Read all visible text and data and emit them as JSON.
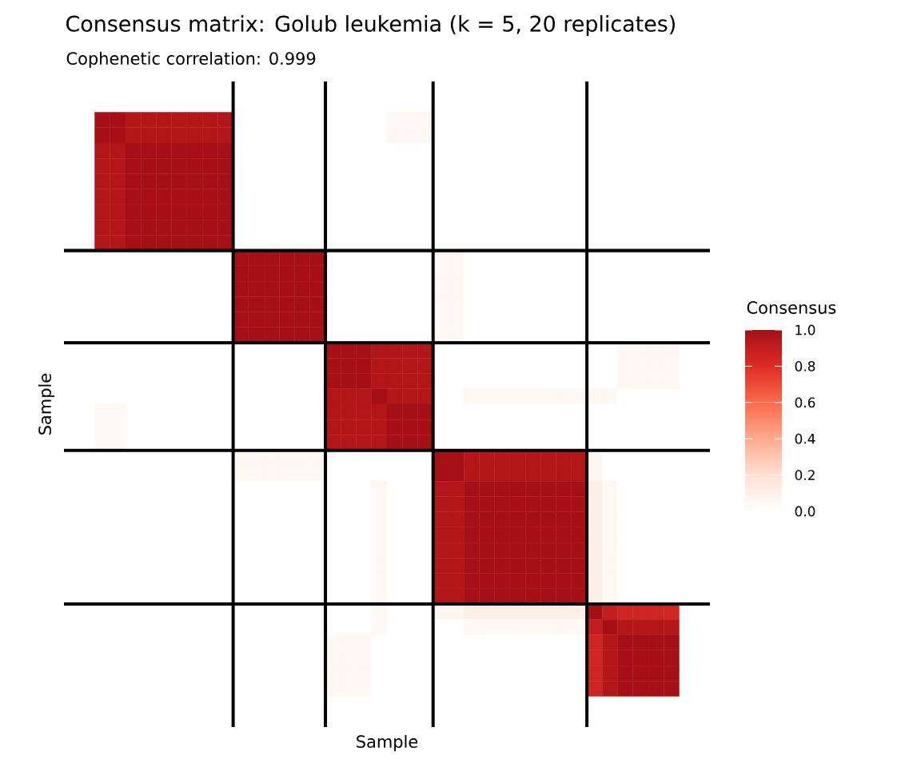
{
  "chart_data": {
    "type": "heatmap",
    "title": "Consensus matrix: Golub leukemia (k = 5, 20 replicates)",
    "subtitle": "Cophenetic correlation: 0.999",
    "xlabel": "Sample",
    "ylabel": "Sample",
    "clabel": "Consensus",
    "categories": [
      null,
      null,
      null,
      null,
      null,
      null,
      null,
      null,
      null,
      null,
      null,
      null,
      null,
      null,
      null,
      null,
      null,
      null,
      null,
      null,
      null,
      null,
      null,
      null,
      null,
      null,
      null,
      null,
      null,
      null,
      null,
      null,
      null,
      null,
      null,
      null,
      null,
      null
    ],
    "y_categories": [
      null,
      null,
      null,
      null,
      null,
      null,
      null,
      null,
      null,
      null,
      null,
      null,
      null,
      null,
      null,
      null,
      null,
      null,
      null,
      null,
      null,
      null,
      null,
      null,
      null,
      null,
      null,
      null,
      null,
      null,
      null,
      null,
      null,
      null,
      null,
      null,
      null,
      null
    ],
    "cells": [
      [
        1,
        1,
        0.95,
        0.95,
        0.95,
        0.95,
        0.95,
        0.95,
        0.95,
        0,
        0,
        0,
        0,
        0,
        0,
        0,
        0,
        0,
        0,
        0.05,
        0.05,
        0.05,
        0,
        0,
        0,
        0,
        0,
        0,
        0,
        0,
        0,
        0,
        0,
        0,
        0,
        0,
        0,
        0
      ],
      [
        1,
        1,
        0.95,
        0.95,
        0.95,
        0.95,
        0.95,
        0.95,
        0.95,
        0,
        0,
        0,
        0,
        0,
        0,
        0,
        0,
        0,
        0,
        0.05,
        0.05,
        0.05,
        0,
        0,
        0,
        0,
        0,
        0,
        0,
        0,
        0,
        0,
        0,
        0,
        0,
        0,
        0,
        0
      ],
      [
        0.95,
        0.95,
        1,
        1,
        1,
        1,
        1,
        1,
        1,
        0,
        0,
        0,
        0,
        0,
        0,
        0,
        0,
        0,
        0,
        0,
        0,
        0,
        0,
        0,
        0,
        0,
        0,
        0,
        0,
        0,
        0,
        0,
        0,
        0,
        0,
        0,
        0,
        0
      ],
      [
        0.95,
        0.95,
        1,
        1,
        1,
        1,
        1,
        1,
        1,
        0,
        0,
        0,
        0,
        0,
        0,
        0,
        0,
        0,
        0,
        0,
        0,
        0,
        0,
        0,
        0,
        0,
        0,
        0,
        0,
        0,
        0,
        0,
        0,
        0,
        0,
        0,
        0,
        0
      ],
      [
        0.95,
        0.95,
        1,
        1,
        1,
        1,
        1,
        1,
        1,
        0,
        0,
        0,
        0,
        0,
        0,
        0,
        0,
        0,
        0,
        0,
        0,
        0,
        0,
        0,
        0,
        0,
        0,
        0,
        0,
        0,
        0,
        0,
        0,
        0,
        0,
        0,
        0,
        0
      ],
      [
        0.95,
        0.95,
        1,
        1,
        1,
        1,
        1,
        1,
        1,
        0,
        0,
        0,
        0,
        0,
        0,
        0,
        0,
        0,
        0,
        0,
        0,
        0,
        0,
        0,
        0,
        0,
        0,
        0,
        0,
        0,
        0,
        0,
        0,
        0,
        0,
        0,
        0,
        0
      ],
      [
        0.95,
        0.95,
        1,
        1,
        1,
        1,
        1,
        1,
        1,
        0,
        0,
        0,
        0,
        0,
        0,
        0,
        0,
        0,
        0,
        0,
        0,
        0,
        0,
        0,
        0,
        0,
        0,
        0,
        0,
        0,
        0,
        0,
        0,
        0,
        0,
        0,
        0,
        0
      ],
      [
        0.95,
        0.95,
        1,
        1,
        1,
        1,
        1,
        1,
        1,
        0,
        0,
        0,
        0,
        0,
        0,
        0,
        0,
        0,
        0,
        0,
        0,
        0,
        0,
        0,
        0,
        0,
        0,
        0,
        0,
        0,
        0,
        0,
        0,
        0,
        0,
        0,
        0,
        0
      ],
      [
        0.95,
        0.95,
        1,
        1,
        1,
        1,
        1,
        1,
        1,
        0,
        0,
        0,
        0,
        0,
        0,
        0,
        0,
        0,
        0,
        0,
        0,
        0,
        0,
        0,
        0,
        0,
        0,
        0,
        0,
        0,
        0,
        0,
        0,
        0,
        0,
        0,
        0,
        0
      ],
      [
        0,
        0,
        0,
        0,
        0,
        0,
        0,
        0,
        0,
        1,
        1,
        1,
        1,
        1,
        1,
        0,
        0,
        0,
        0,
        0,
        0,
        0,
        0.05,
        0.05,
        0,
        0,
        0,
        0,
        0,
        0,
        0,
        0,
        0,
        0,
        0,
        0,
        0,
        0
      ],
      [
        0,
        0,
        0,
        0,
        0,
        0,
        0,
        0,
        0,
        1,
        1,
        1,
        1,
        1,
        1,
        0,
        0,
        0,
        0,
        0,
        0,
        0,
        0.05,
        0.05,
        0,
        0,
        0,
        0,
        0,
        0,
        0,
        0,
        0,
        0,
        0,
        0,
        0,
        0
      ],
      [
        0,
        0,
        0,
        0,
        0,
        0,
        0,
        0,
        0,
        1,
        1,
        1,
        1,
        1,
        1,
        0,
        0,
        0,
        0,
        0,
        0,
        0,
        0.05,
        0.05,
        0,
        0,
        0,
        0,
        0,
        0,
        0,
        0,
        0,
        0,
        0,
        0,
        0,
        0
      ],
      [
        0,
        0,
        0,
        0,
        0,
        0,
        0,
        0,
        0,
        1,
        1,
        1,
        1,
        1,
        1,
        0,
        0,
        0,
        0,
        0,
        0,
        0,
        0.05,
        0.05,
        0,
        0,
        0,
        0,
        0,
        0,
        0,
        0,
        0,
        0,
        0,
        0,
        0,
        0
      ],
      [
        0,
        0,
        0,
        0,
        0,
        0,
        0,
        0,
        0,
        1,
        1,
        1,
        1,
        1,
        1,
        0,
        0,
        0,
        0,
        0,
        0,
        0,
        0.05,
        0.05,
        0,
        0,
        0,
        0,
        0,
        0,
        0,
        0,
        0,
        0,
        0,
        0,
        0,
        0
      ],
      [
        0,
        0,
        0,
        0,
        0,
        0,
        0,
        0,
        0,
        1,
        1,
        1,
        1,
        1,
        1,
        0,
        0,
        0,
        0,
        0,
        0,
        0,
        0.05,
        0.05,
        0,
        0,
        0,
        0,
        0,
        0,
        0,
        0,
        0,
        0,
        0,
        0,
        0,
        0
      ],
      [
        0,
        0,
        0,
        0,
        0,
        0,
        0,
        0,
        0,
        0,
        0,
        0,
        0,
        0,
        0,
        1,
        1,
        1,
        0.95,
        0.95,
        0.95,
        0.95,
        0,
        0,
        0,
        0,
        0,
        0,
        0,
        0,
        0,
        0,
        0,
        0,
        0.05,
        0.05,
        0.05,
        0.05
      ],
      [
        0,
        0,
        0,
        0,
        0,
        0,
        0,
        0,
        0,
        0,
        0,
        0,
        0,
        0,
        0,
        1,
        1,
        1,
        0.95,
        0.95,
        0.95,
        0.95,
        0,
        0,
        0,
        0,
        0,
        0,
        0,
        0,
        0,
        0,
        0,
        0,
        0.05,
        0.05,
        0.05,
        0.05
      ],
      [
        0,
        0,
        0,
        0,
        0,
        0,
        0,
        0,
        0,
        0,
        0,
        0,
        0,
        0,
        0,
        1,
        1,
        1,
        0.95,
        0.95,
        0.95,
        0.95,
        0,
        0,
        0,
        0,
        0,
        0,
        0,
        0,
        0,
        0,
        0,
        0,
        0.05,
        0.05,
        0.05,
        0.05
      ],
      [
        0,
        0,
        0,
        0,
        0,
        0,
        0,
        0,
        0,
        0,
        0,
        0,
        0,
        0,
        0,
        0.95,
        0.95,
        0.95,
        1,
        0.95,
        0.95,
        0.95,
        0,
        0,
        0.05,
        0.05,
        0.05,
        0.05,
        0.05,
        0.05,
        0.05,
        0.05,
        0.05,
        0.05,
        0,
        0,
        0,
        0
      ],
      [
        0.05,
        0.05,
        0,
        0,
        0,
        0,
        0,
        0,
        0,
        0,
        0,
        0,
        0,
        0,
        0,
        0.95,
        0.95,
        0.95,
        0.95,
        1,
        1,
        1,
        0,
        0,
        0,
        0,
        0,
        0,
        0,
        0,
        0,
        0,
        0,
        0,
        0,
        0,
        0,
        0
      ],
      [
        0.05,
        0.05,
        0,
        0,
        0,
        0,
        0,
        0,
        0,
        0,
        0,
        0,
        0,
        0,
        0,
        0.95,
        0.95,
        0.95,
        0.95,
        1,
        1,
        1,
        0,
        0,
        0,
        0,
        0,
        0,
        0,
        0,
        0,
        0,
        0,
        0,
        0,
        0,
        0,
        0
      ],
      [
        0.05,
        0.05,
        0,
        0,
        0,
        0,
        0,
        0,
        0,
        0,
        0,
        0,
        0,
        0,
        0,
        0.95,
        0.95,
        0.95,
        0.95,
        1,
        1,
        1,
        0,
        0,
        0,
        0,
        0,
        0,
        0,
        0,
        0,
        0,
        0,
        0,
        0,
        0,
        0,
        0
      ],
      [
        0,
        0,
        0,
        0,
        0,
        0,
        0,
        0,
        0,
        0.05,
        0.05,
        0.05,
        0.05,
        0.05,
        0.05,
        0,
        0,
        0,
        0,
        0,
        0,
        0,
        1,
        1,
        0.95,
        0.95,
        0.95,
        0.95,
        0.95,
        0.95,
        0.95,
        0.95,
        0.06,
        0,
        0,
        0,
        0,
        0
      ],
      [
        0,
        0,
        0,
        0,
        0,
        0,
        0,
        0,
        0,
        0.05,
        0.05,
        0.05,
        0.05,
        0.05,
        0.05,
        0,
        0,
        0,
        0,
        0,
        0,
        0,
        1,
        1,
        0.95,
        0.95,
        0.95,
        0.95,
        0.95,
        0.95,
        0.95,
        0.95,
        0.06,
        0,
        0,
        0,
        0,
        0
      ],
      [
        0,
        0,
        0,
        0,
        0,
        0,
        0,
        0,
        0,
        0,
        0,
        0,
        0,
        0,
        0,
        0,
        0,
        0,
        0.05,
        0,
        0,
        0,
        0.95,
        0.95,
        1,
        1,
        1,
        1,
        1,
        1,
        1,
        1,
        0.1,
        0.05,
        0,
        0,
        0,
        0
      ],
      [
        0,
        0,
        0,
        0,
        0,
        0,
        0,
        0,
        0,
        0,
        0,
        0,
        0,
        0,
        0,
        0,
        0,
        0,
        0.05,
        0,
        0,
        0,
        0.95,
        0.95,
        1,
        1,
        1,
        1,
        1,
        1,
        1,
        1,
        0.1,
        0.05,
        0,
        0,
        0,
        0
      ],
      [
        0,
        0,
        0,
        0,
        0,
        0,
        0,
        0,
        0,
        0,
        0,
        0,
        0,
        0,
        0,
        0,
        0,
        0,
        0.05,
        0,
        0,
        0,
        0.95,
        0.95,
        1,
        1,
        1,
        1,
        1,
        1,
        1,
        1,
        0.1,
        0.05,
        0,
        0,
        0,
        0
      ],
      [
        0,
        0,
        0,
        0,
        0,
        0,
        0,
        0,
        0,
        0,
        0,
        0,
        0,
        0,
        0,
        0,
        0,
        0,
        0.05,
        0,
        0,
        0,
        0.95,
        0.95,
        1,
        1,
        1,
        1,
        1,
        1,
        1,
        1,
        0.1,
        0.05,
        0,
        0,
        0,
        0
      ],
      [
        0,
        0,
        0,
        0,
        0,
        0,
        0,
        0,
        0,
        0,
        0,
        0,
        0,
        0,
        0,
        0,
        0,
        0,
        0.05,
        0,
        0,
        0,
        0.95,
        0.95,
        1,
        1,
        1,
        1,
        1,
        1,
        1,
        1,
        0.1,
        0.05,
        0,
        0,
        0,
        0
      ],
      [
        0,
        0,
        0,
        0,
        0,
        0,
        0,
        0,
        0,
        0,
        0,
        0,
        0,
        0,
        0,
        0,
        0,
        0,
        0.05,
        0,
        0,
        0,
        0.95,
        0.95,
        1,
        1,
        1,
        1,
        1,
        1,
        1,
        1,
        0.1,
        0.05,
        0,
        0,
        0,
        0
      ],
      [
        0,
        0,
        0,
        0,
        0,
        0,
        0,
        0,
        0,
        0,
        0,
        0,
        0,
        0,
        0,
        0,
        0,
        0,
        0.05,
        0,
        0,
        0,
        0.95,
        0.95,
        1,
        1,
        1,
        1,
        1,
        1,
        1,
        1,
        0.1,
        0.05,
        0,
        0,
        0,
        0
      ],
      [
        0,
        0,
        0,
        0,
        0,
        0,
        0,
        0,
        0,
        0,
        0,
        0,
        0,
        0,
        0,
        0,
        0,
        0,
        0.05,
        0,
        0,
        0,
        0.95,
        0.95,
        1,
        1,
        1,
        1,
        1,
        1,
        1,
        1,
        0.1,
        0.05,
        0,
        0,
        0,
        0
      ],
      [
        0,
        0,
        0,
        0,
        0,
        0,
        0,
        0,
        0,
        0,
        0,
        0,
        0,
        0,
        0,
        0,
        0,
        0,
        0.05,
        0,
        0,
        0,
        0.06,
        0.06,
        0.1,
        0.1,
        0.1,
        0.1,
        0.1,
        0.1,
        0.1,
        0.1,
        1,
        0.9,
        0.85,
        0.85,
        0.85,
        0.85
      ],
      [
        0,
        0,
        0,
        0,
        0,
        0,
        0,
        0,
        0,
        0,
        0,
        0,
        0,
        0,
        0,
        0,
        0,
        0,
        0.05,
        0,
        0,
        0,
        0,
        0,
        0.05,
        0.05,
        0.05,
        0.05,
        0.05,
        0.05,
        0.05,
        0.05,
        0.9,
        1,
        0.95,
        0.95,
        0.95,
        0.95
      ],
      [
        0,
        0,
        0,
        0,
        0,
        0,
        0,
        0,
        0,
        0,
        0,
        0,
        0,
        0,
        0,
        0.05,
        0.05,
        0.05,
        0,
        0,
        0,
        0,
        0,
        0,
        0,
        0,
        0,
        0,
        0,
        0,
        0,
        0,
        0.85,
        0.95,
        1,
        1,
        1,
        1
      ],
      [
        0,
        0,
        0,
        0,
        0,
        0,
        0,
        0,
        0,
        0,
        0,
        0,
        0,
        0,
        0,
        0.05,
        0.05,
        0.05,
        0,
        0,
        0,
        0,
        0,
        0,
        0,
        0,
        0,
        0,
        0,
        0,
        0,
        0,
        0.85,
        0.95,
        1,
        1,
        1,
        1
      ],
      [
        0,
        0,
        0,
        0,
        0,
        0,
        0,
        0,
        0,
        0,
        0,
        0,
        0,
        0,
        0,
        0.05,
        0.05,
        0.05,
        0,
        0,
        0,
        0,
        0,
        0,
        0,
        0,
        0,
        0,
        0,
        0,
        0,
        0,
        0.85,
        0.95,
        1,
        1,
        1,
        1
      ],
      [
        0,
        0,
        0,
        0,
        0,
        0,
        0,
        0,
        0,
        0,
        0,
        0,
        0,
        0,
        0,
        0.05,
        0.05,
        0.05,
        0,
        0,
        0,
        0,
        0,
        0,
        0,
        0,
        0,
        0,
        0,
        0,
        0,
        0,
        0.85,
        0.95,
        1,
        1,
        1,
        1
      ]
    ],
    "clim": [
      0,
      1
    ],
    "cticks": [
      {
        "value": 0,
        "label": "0.0"
      },
      {
        "value": 0.2,
        "label": "0.2"
      },
      {
        "value": 0.4,
        "label": "0.4"
      },
      {
        "value": 0.6,
        "label": "0.6"
      },
      {
        "value": 0.8,
        "label": "0.8"
      },
      {
        "value": 1,
        "label": "1.0"
      }
    ],
    "colors": [
      "#ffffff",
      "#fee0d2",
      "#fcab8f",
      "#fb6a4a",
      "#dd2c25",
      "#a50f15"
    ]
  }
}
